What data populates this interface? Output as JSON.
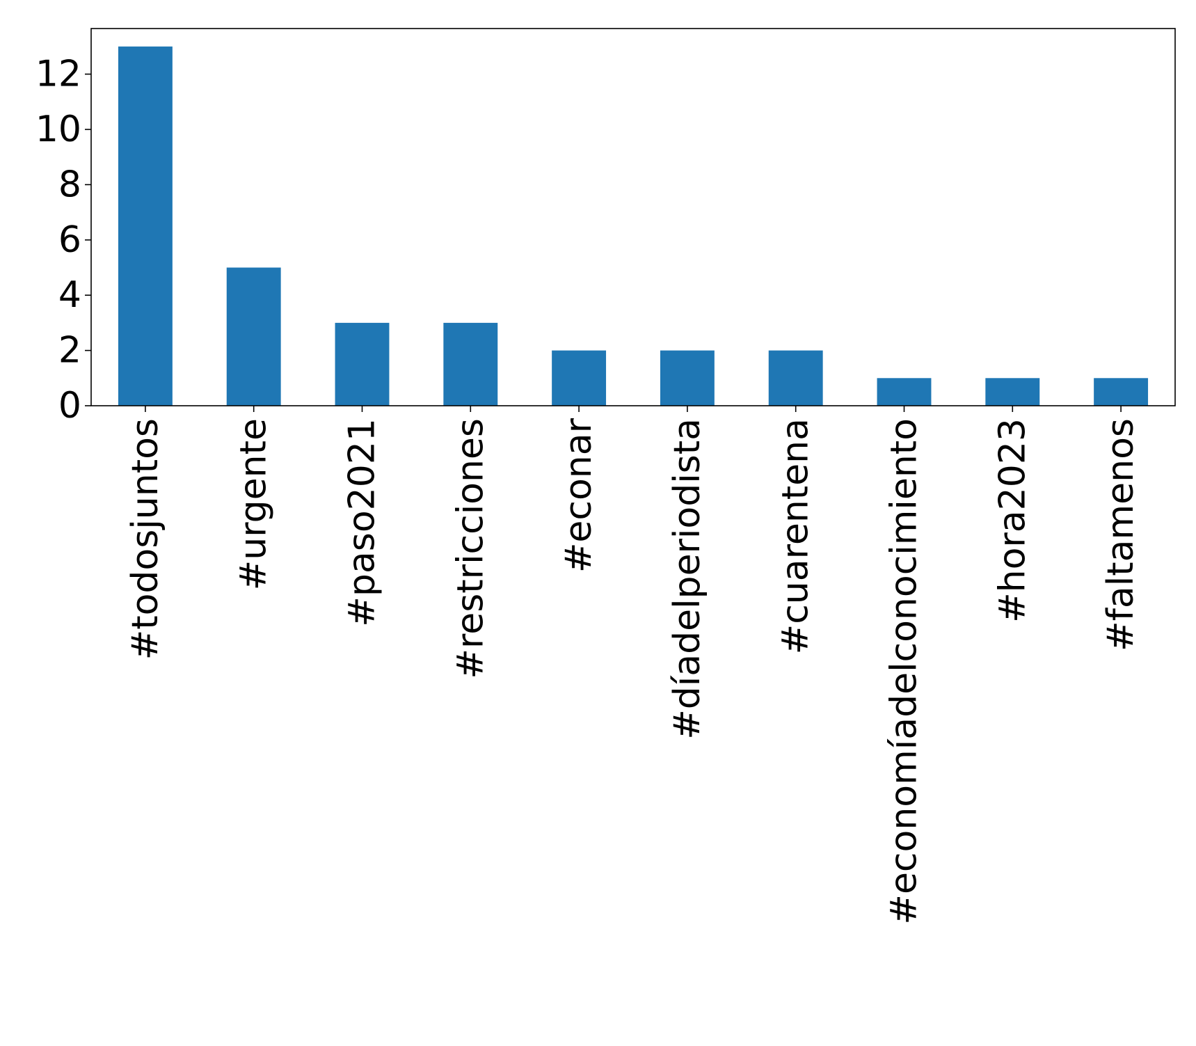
{
  "chart_data": {
    "type": "bar",
    "categories": [
      "#todosjuntos",
      "#urgente",
      "#paso2021",
      "#restricciones",
      "#econar",
      "#díadelperiodista",
      "#cuarentena",
      "#economíadelconocimiento",
      "#hora2023",
      "#faltamenos"
    ],
    "values": [
      13,
      5,
      3,
      3,
      2,
      2,
      2,
      1,
      1,
      1
    ],
    "title": "",
    "xlabel": "",
    "ylabel": "",
    "ylim": [
      0,
      13.65
    ],
    "yticks": [
      0,
      2,
      4,
      6,
      8,
      10,
      12
    ],
    "grid": false,
    "legend": "none",
    "bar_color": "#1f77b4"
  }
}
